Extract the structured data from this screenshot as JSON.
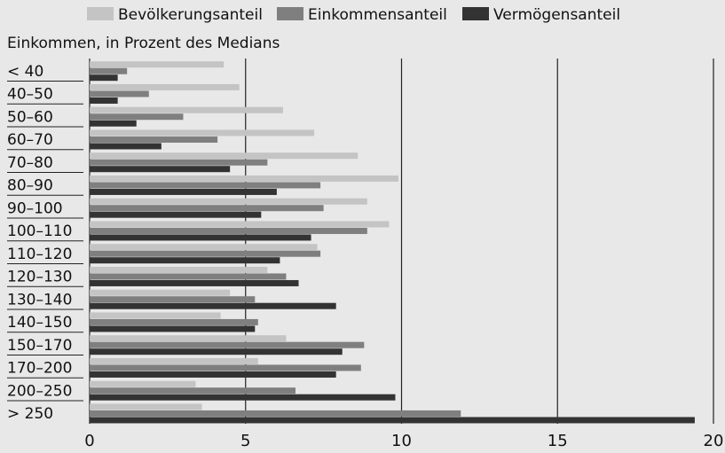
{
  "chart_data": {
    "type": "bar",
    "orientation": "horizontal",
    "subtitle": "Einkommen, in Prozent des Medians",
    "categories": [
      "< 40",
      "40–50",
      "50–60",
      "60–70",
      "70–80",
      "80–90",
      "90–100",
      "100–110",
      "110–120",
      "120–130",
      "130–140",
      "140–150",
      "150–170",
      "170–200",
      "200–250",
      "> 250"
    ],
    "series": [
      {
        "name": "Bevölkerungsanteil",
        "color": "#c4c4c4",
        "values": [
          4.3,
          4.8,
          6.2,
          7.2,
          8.6,
          9.9,
          8.9,
          9.6,
          7.3,
          5.7,
          4.5,
          4.2,
          6.3,
          5.4,
          3.4,
          3.6
        ]
      },
      {
        "name": "Einkommensanteil",
        "color": "#7f7f7f",
        "values": [
          1.2,
          1.9,
          3.0,
          4.1,
          5.7,
          7.4,
          7.5,
          8.9,
          7.4,
          6.3,
          5.3,
          5.4,
          8.8,
          8.7,
          6.6,
          11.9
        ]
      },
      {
        "name": "Vermögensanteil",
        "color": "#333333",
        "values": [
          0.9,
          0.9,
          1.5,
          2.3,
          4.5,
          6.0,
          5.5,
          7.1,
          6.1,
          6.7,
          7.9,
          5.3,
          8.1,
          7.9,
          9.8,
          19.4
        ]
      }
    ],
    "xlim": [
      0,
      20
    ],
    "xticks": [
      0,
      5,
      10,
      15,
      20
    ],
    "grid": "vertical",
    "legend": "top"
  }
}
